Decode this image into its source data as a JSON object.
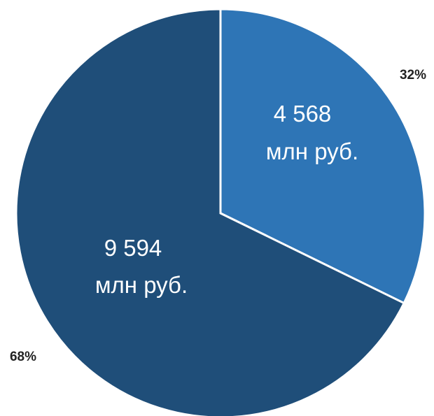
{
  "chart_data": {
    "type": "pie",
    "slices": [
      {
        "value": 4568,
        "value_text": "4 568",
        "unit_text": "млн руб.",
        "percent_text": "32%",
        "color": "#2e75b6"
      },
      {
        "value": 9594,
        "value_text": "9 594",
        "unit_text": "млн руб.",
        "percent_text": "68%",
        "color": "#1f4e79"
      }
    ],
    "start_angle_deg": 0,
    "direction": "clockwise",
    "legend": "none"
  }
}
